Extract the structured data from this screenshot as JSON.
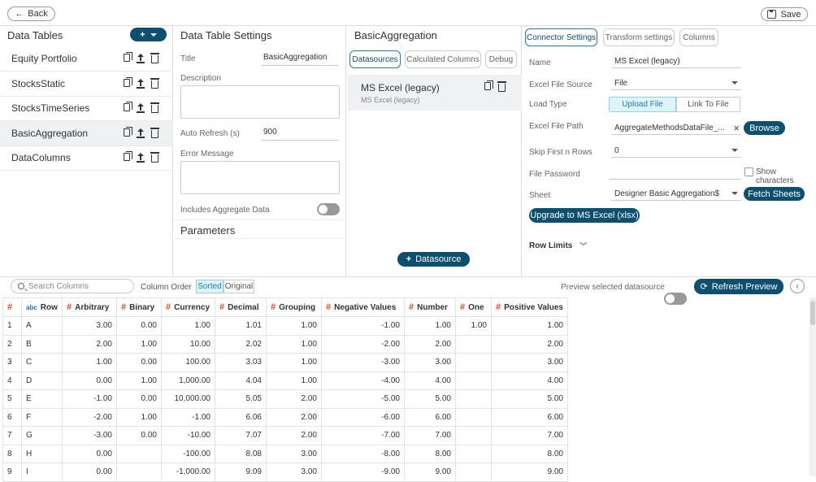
{
  "topbar": {
    "back_label": "Back",
    "save_label": "Save"
  },
  "data_tables": {
    "title": "Data Tables",
    "items": [
      {
        "label": "Equity Portfolio"
      },
      {
        "label": "StocksStatic"
      },
      {
        "label": "StocksTimeSeries"
      },
      {
        "label": "BasicAggregation"
      },
      {
        "label": "DataColumns"
      }
    ],
    "selected": "BasicAggregation"
  },
  "settings": {
    "title": "Data Table Settings",
    "title_label": "Title",
    "title_value": "BasicAggregation",
    "description_label": "Description",
    "auto_refresh_label": "Auto Refresh (s)",
    "auto_refresh_value": "900",
    "error_label": "Error Message",
    "aggregate_label": "Includes Aggregate Data",
    "aggregate_on": false,
    "parameters_title": "Parameters"
  },
  "datasource_panel": {
    "title": "BasicAggregation",
    "tabs": [
      "Datasources",
      "Calculated Columns",
      "Debug"
    ],
    "active_tab": "Datasources",
    "item_name": "MS Excel (legacy)",
    "item_sub": "MS Excel (legacy)",
    "add_label": "Datasource"
  },
  "connector": {
    "tabs": [
      "Connector Settings",
      "Transform settings",
      "Columns"
    ],
    "active_tab": "Connector Settings",
    "name_label": "Name",
    "name_value": "MS Excel (legacy)",
    "source_label": "Excel File Source",
    "source_value": "File",
    "load_type_label": "Load Type",
    "load_upload": "Upload File",
    "load_link": "Link To File",
    "path_label": "Excel File Path",
    "path_value": "AggregateMethodsDataFile_...",
    "browse_label": "Browse",
    "skip_label": "Skip First n Rows",
    "skip_value": "0",
    "password_label": "File Password",
    "show_chars_label": "Show characters",
    "sheet_label": "Sheet",
    "sheet_value": "Designer Basic Aggregation$",
    "fetch_label": "Fetch Sheets",
    "upgrade_label": "Upgrade to MS Excel (xlsx)",
    "row_limits_label": "Row Limits"
  },
  "preview": {
    "search_placeholder": "Search Columns",
    "column_order_label": "Column Order",
    "sorted_label": "Sorted",
    "original_label": "Original",
    "preview_selected_label": "Preview selected datasource",
    "refresh_label": "Refresh Preview",
    "header_hash": "#",
    "header_abc": "abc",
    "columns": [
      "Row",
      "Arbitrary",
      "Binary",
      "Currency",
      "Decimal",
      "Grouping",
      "Negative Values",
      "Number",
      "One",
      "Positive Values"
    ],
    "rows": [
      [
        "1",
        "A",
        "3.00",
        "0.00",
        "1.00",
        "1.01",
        "1.00",
        "-1.00",
        "1.00",
        "1.00",
        "1.00"
      ],
      [
        "2",
        "B",
        "2.00",
        "1.00",
        "10.00",
        "2.02",
        "1.00",
        "-2.00",
        "2.00",
        "",
        "2.00"
      ],
      [
        "3",
        "C",
        "1.00",
        "0.00",
        "100.00",
        "3.03",
        "1.00",
        "-3.00",
        "3.00",
        "",
        "3.00"
      ],
      [
        "4",
        "D",
        "0.00",
        "1.00",
        "1,000.00",
        "4.04",
        "1.00",
        "-4.00",
        "4.00",
        "",
        "4.00"
      ],
      [
        "5",
        "E",
        "-1.00",
        "0.00",
        "10,000.00",
        "5.05",
        "2.00",
        "-5.00",
        "5.00",
        "",
        "5.00"
      ],
      [
        "6",
        "F",
        "-2.00",
        "1.00",
        "-1.00",
        "6.06",
        "2.00",
        "-6.00",
        "6.00",
        "",
        "6.00"
      ],
      [
        "7",
        "G",
        "-3.00",
        "0.00",
        "-10.00",
        "7.07",
        "2.00",
        "-7.00",
        "7.00",
        "",
        "7.00"
      ],
      [
        "8",
        "H",
        "0.00",
        "",
        "-100.00",
        "8.08",
        "3.00",
        "-8.00",
        "8.00",
        "",
        "8.00"
      ],
      [
        "9",
        "I",
        "0.00",
        "",
        "-1,000.00",
        "9.09",
        "3.00",
        "-9.00",
        "9.00",
        "",
        "9.00"
      ]
    ]
  }
}
